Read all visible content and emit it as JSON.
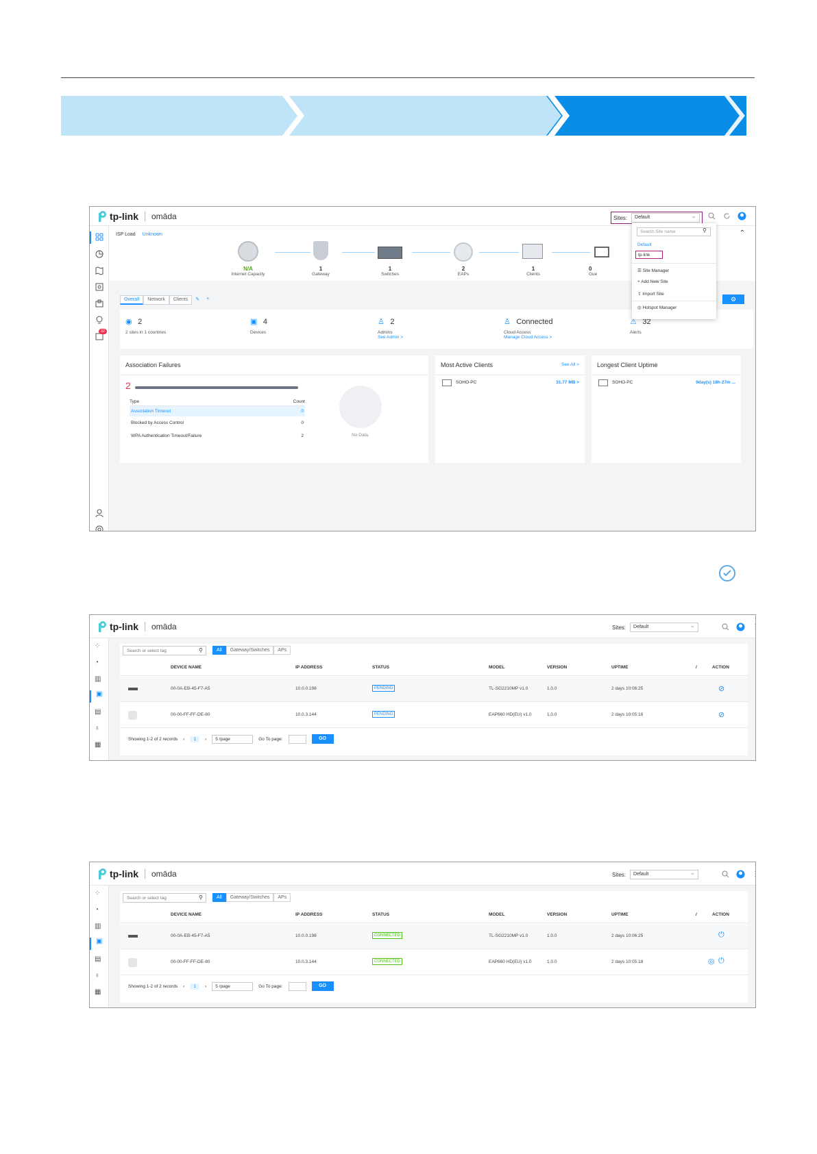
{
  "shot1": {
    "sites_label": "Sites:",
    "site_selected": "Default",
    "isp_label": "ISP Load",
    "isp_value": "Unknown",
    "topology": [
      {
        "value": "N/A",
        "label": "Internet Capacity"
      },
      {
        "value": "1",
        "label": "Gateway"
      },
      {
        "value": "1",
        "label": "Switches"
      },
      {
        "value": "2",
        "label": "EAPs"
      },
      {
        "value": "1",
        "label": "Clients"
      },
      {
        "value": "0",
        "label": "Gue"
      }
    ],
    "tabs": [
      "Overall",
      "Network",
      "Clients"
    ],
    "dropdown": {
      "search_placeholder": "Search Site name",
      "sites": [
        "Default",
        "tp-link"
      ],
      "menu": [
        "Site Manager",
        "Add New Site",
        "Import Site",
        "Hotspot Manager"
      ]
    },
    "stats": [
      {
        "value": "2",
        "sub": "2 sites in 1 countries",
        "link": ""
      },
      {
        "value": "4",
        "sub": "Devices",
        "link": ""
      },
      {
        "value": "2",
        "sub": "Admins",
        "link": "See Admin >"
      },
      {
        "value": "Connected",
        "sub": "Cloud Access",
        "link": "Manage Cloud Access >"
      },
      {
        "value": "32",
        "sub": "Alerts",
        "link": ""
      }
    ],
    "alert_badge": "32",
    "assoc": {
      "title": "Association Failures",
      "total": "2",
      "col_type": "Type",
      "col_count": "Count",
      "rows": [
        {
          "type": "Association Timeout",
          "count": "0"
        },
        {
          "type": "Blocked by Access Control",
          "count": "0"
        },
        {
          "type": "WPA Authentication Timeout/Failure",
          "count": "2"
        }
      ],
      "nodata": "No Data."
    },
    "active": {
      "title": "Most Active Clients",
      "see_all": "See All >",
      "client": "SOHO-PC",
      "value": "31.77 MB >"
    },
    "uptime": {
      "title": "Longest Client Uptime",
      "client": "SOHO-PC",
      "value": "9day(s) 18h 27m ..."
    }
  },
  "table_common": {
    "sites_label": "Sites:",
    "site_selected": "Default",
    "search_placeholder": "Search or select tag",
    "filters": [
      "All",
      "Gateway/Switches",
      "APs"
    ],
    "headers": [
      "DEVICE NAME",
      "IP ADDRESS",
      "STATUS",
      "MODEL",
      "VERSION",
      "UPTIME",
      "/",
      "ACTION"
    ],
    "footer_records": "Showing 1-2 of 2 records",
    "page": "1",
    "per_page": "5 /page",
    "goto_label": "Go To page:",
    "go": "GO"
  },
  "shot2": {
    "rows": [
      {
        "name": "00-0A-EB-45-F7-A5",
        "ip": "10.0.0.198",
        "status": "PENDING",
        "model": "TL-SG2210MP v1.0",
        "version": "1.0.0",
        "uptime": "2 days 10:06:25"
      },
      {
        "name": "00-00-FF-FF-DE-80",
        "ip": "10.0.3.144",
        "status": "PENDING",
        "model": "EAP660 HD(EU) v1.0",
        "version": "1.0.0",
        "uptime": "2 days 10:05:18"
      }
    ]
  },
  "shot3": {
    "rows": [
      {
        "name": "00-0A-EB-45-F7-A5",
        "ip": "10.0.0.198",
        "status": "CONNECTED",
        "model": "TL-SG2210MP v1.0",
        "version": "1.0.0",
        "uptime": "2 days 10:06:25"
      },
      {
        "name": "00-00-FF-FF-DE-80",
        "ip": "10.0.3.144",
        "status": "CONNECTED",
        "model": "EAP660 HD(EU) v1.0",
        "version": "1.0.0",
        "uptime": "2 days 10:05:18"
      }
    ]
  },
  "colors": {
    "accent": "#1890ff",
    "step_light": "#bfe3f7",
    "step_dark": "#0a8de6",
    "connected": "#52c41a",
    "alert": "#e8344e"
  }
}
